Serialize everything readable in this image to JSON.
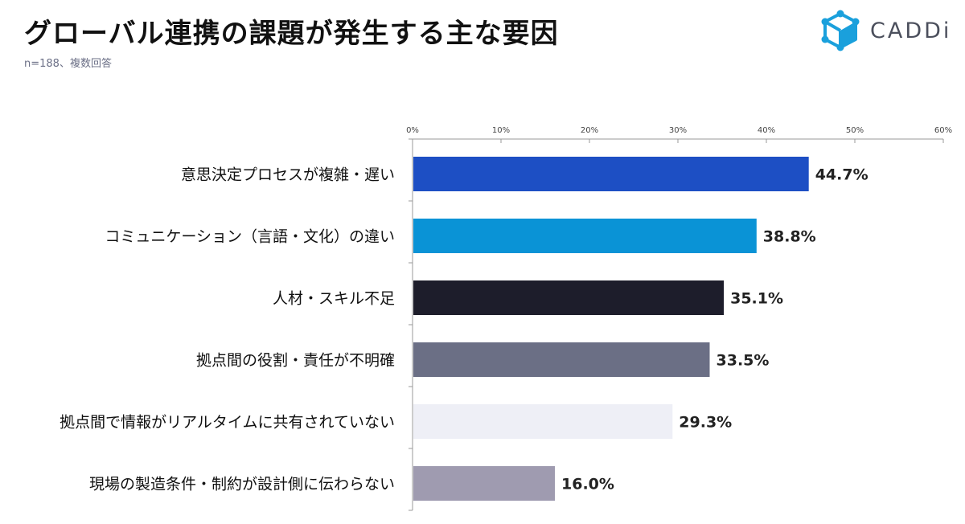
{
  "header": {
    "title": "グローバル連携の課題が発生する主な要因",
    "subtitle": "n=188、複数回答",
    "logo_text": "CADDi",
    "logo_icon": "cube-icon"
  },
  "colors": {
    "logo_cube": "#1aa0dc",
    "axis": "#999999"
  },
  "chart_data": {
    "type": "bar",
    "orientation": "horizontal",
    "title": "グローバル連携の課題が発生する主な要因",
    "subtitle": "n=188、複数回答",
    "xlim": [
      0,
      60
    ],
    "ticks": [
      0,
      10,
      20,
      30,
      40,
      50,
      60
    ],
    "tick_labels": [
      "0%",
      "10%",
      "20%",
      "30%",
      "40%",
      "50%",
      "60%"
    ],
    "categories": [
      "意思決定プロセスが複雑・遅い",
      "コミュニケーション（言語・文化）の違い",
      "人材・スキル不足",
      "拠点間の役割・責任が不明確",
      "拠点間で情報がリアルタイムに共有されていない",
      "現場の製造条件・制約が設計側に伝わらない"
    ],
    "values": [
      44.7,
      38.8,
      35.1,
      33.5,
      29.3,
      16.0
    ],
    "value_labels": [
      "44.7%",
      "38.8%",
      "35.1%",
      "33.5%",
      "29.3%",
      "16.0%"
    ],
    "bar_colors": [
      "#1d4fc4",
      "#0a93d6",
      "#1d1d2b",
      "#6b6f85",
      "#eeeff6",
      "#9f9bb0"
    ],
    "grid": false,
    "legend": "none"
  }
}
